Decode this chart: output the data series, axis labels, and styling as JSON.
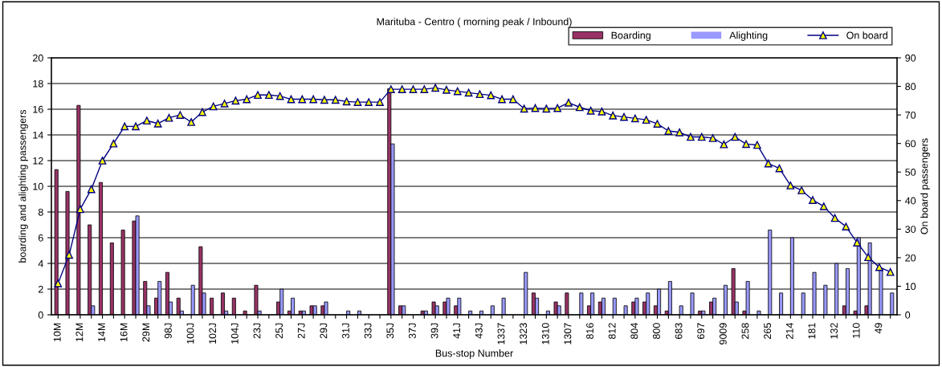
{
  "chart_data": {
    "type": "bar",
    "title": "Marituba - Centro ( morning peak / Inbound)",
    "xlabel": "Bus-stop Number",
    "ylabel": "boarding and alighting passengers",
    "y2label": "On board passengers",
    "categories": [
      "10M",
      null,
      "12M",
      null,
      "14M",
      null,
      "16M",
      null,
      "29M",
      null,
      "98J",
      null,
      "100J",
      null,
      "102J",
      null,
      "104J",
      null,
      "23J",
      null,
      "25J",
      null,
      "27J",
      null,
      "29J",
      null,
      "31J",
      null,
      "33J",
      null,
      "35J",
      null,
      "37J",
      null,
      "39J",
      null,
      "41J",
      null,
      "43J",
      null,
      "1337",
      null,
      "1323",
      null,
      "1310",
      null,
      "1307",
      null,
      "816",
      null,
      "812",
      null,
      "804",
      null,
      "800",
      null,
      "683",
      null,
      "697",
      null,
      "9009",
      null,
      "258",
      null,
      "265",
      null,
      "214",
      null,
      "181",
      null,
      "132",
      null,
      "110",
      null,
      "49",
      null
    ],
    "series": [
      {
        "name": "Boarding",
        "color": "#993366",
        "values": [
          11.3,
          9.6,
          16.3,
          7.0,
          10.3,
          5.6,
          6.6,
          7.3,
          2.6,
          1.3,
          3.3,
          1.3,
          0,
          5.3,
          1.3,
          1.7,
          1.3,
          0.3,
          2.3,
          0,
          1.0,
          0.3,
          0.3,
          0.7,
          0.7,
          0,
          0,
          0,
          0,
          0,
          17.6,
          0.7,
          0,
          0.3,
          1.0,
          1.0,
          0.7,
          0,
          0,
          0,
          0,
          0,
          0,
          1.7,
          0,
          1.0,
          1.7,
          0,
          0.7,
          1.0,
          0,
          0,
          1.0,
          1.0,
          0.7,
          0.3,
          0,
          0,
          0.3,
          1.0,
          0,
          3.6,
          0.3,
          0,
          0,
          0,
          0,
          0,
          0,
          0,
          0,
          0.7,
          0.3,
          0.7,
          0,
          0
        ]
      },
      {
        "name": "Alighting",
        "color": "#9999ff",
        "values": [
          0,
          0,
          0,
          0.7,
          0,
          0,
          0,
          7.7,
          0.7,
          2.6,
          1.0,
          0.3,
          2.3,
          1.7,
          0,
          0.3,
          0,
          0,
          0.3,
          0,
          2.0,
          1.3,
          0.3,
          0.7,
          1.0,
          0,
          0.3,
          0.3,
          0,
          0,
          13.3,
          0.7,
          0,
          0.3,
          0.7,
          1.3,
          1.3,
          0.3,
          0.3,
          0.7,
          1.3,
          0,
          3.3,
          1.3,
          0.3,
          0.7,
          0,
          1.7,
          1.7,
          1.3,
          1.3,
          0.7,
          1.3,
          1.7,
          2.0,
          2.6,
          0.7,
          1.7,
          0.3,
          1.3,
          2.3,
          1.0,
          2.6,
          0.3,
          6.6,
          1.7,
          6.0,
          1.7,
          3.3,
          2.3,
          4.0,
          3.6,
          6.0,
          5.6,
          3.6,
          1.7
        ]
      },
      {
        "name": "On board",
        "type": "line",
        "axis": "y2",
        "color": "#000080",
        "marker": "triangle",
        "values": [
          11,
          21,
          37,
          44,
          54,
          60,
          66,
          66,
          68,
          67,
          69,
          70,
          67.5,
          71,
          73,
          74,
          75,
          75.5,
          77,
          77,
          76.6,
          75.5,
          75.5,
          75.5,
          75.3,
          75.3,
          74.7,
          74.5,
          74.5,
          74.5,
          79,
          79,
          79,
          79,
          79.5,
          78.8,
          78.3,
          77.8,
          77.3,
          76.9,
          75.5,
          75.5,
          72.2,
          72.4,
          72.2,
          72.4,
          74.3,
          72.7,
          71.5,
          71.2,
          69.8,
          69.3,
          68.8,
          68.3,
          66.9,
          64.4,
          63.9,
          62.3,
          62.3,
          61.9,
          59.7,
          62.3,
          59.8,
          59.5,
          53,
          51.3,
          45.3,
          43.6,
          40.2,
          38,
          33.9,
          30.9,
          25.3,
          20.2,
          16.7,
          15
        ]
      }
    ],
    "ylim": [
      0,
      20
    ],
    "yticks": [
      0,
      2,
      4,
      6,
      8,
      10,
      12,
      14,
      16,
      18,
      20
    ],
    "y2lim": [
      0,
      90
    ],
    "y2ticks": [
      0,
      10,
      20,
      30,
      40,
      50,
      60,
      70,
      80,
      90
    ],
    "grid": "y",
    "legend": "top right"
  }
}
